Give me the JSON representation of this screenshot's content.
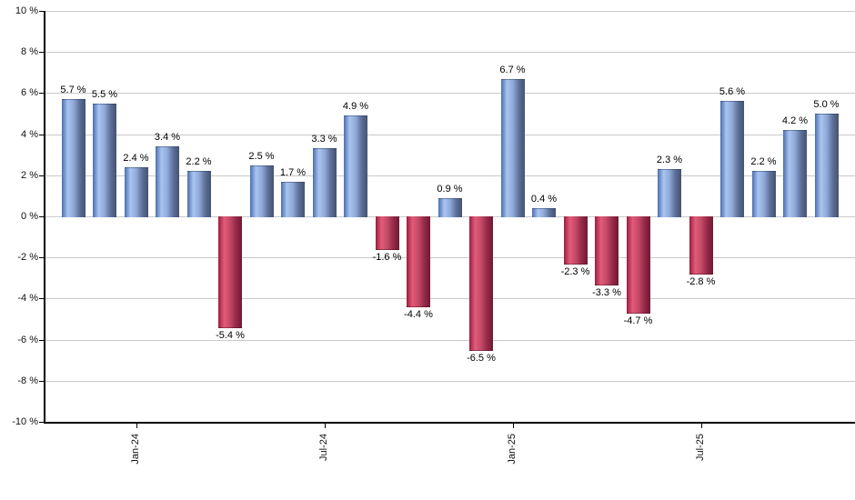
{
  "chart_data": {
    "type": "bar",
    "title": "",
    "values": [
      5.7,
      5.5,
      2.4,
      3.4,
      2.2,
      -5.4,
      2.5,
      1.7,
      3.3,
      4.9,
      -1.6,
      -4.4,
      0.9,
      -6.5,
      6.7,
      0.4,
      -2.3,
      -3.3,
      -4.7,
      2.3,
      -2.8,
      5.6,
      2.2,
      4.2,
      5.0
    ],
    "bar_value_labels": [
      "5.7 %",
      "5.5 %",
      "2.4 %",
      "3.4 %",
      "2.2 %",
      "-5.4 %",
      "2.5 %",
      "1.7 %",
      "3.3 %",
      "4.9 %",
      "-1.6 %",
      "-4.4 %",
      "0.9 %",
      "-6.5 %",
      "6.7 %",
      "0.4 %",
      "-2.3 %",
      "-3.3 %",
      "-4.7 %",
      "2.3 %",
      "-2.8 %",
      "5.6 %",
      "2.2 %",
      "4.2 %",
      "5.0 %"
    ],
    "x_axis": {
      "ticks": [
        {
          "label": "Jan-24",
          "bar_index": 2
        },
        {
          "label": "Jul-24",
          "bar_index": 8
        },
        {
          "label": "Jan-25",
          "bar_index": 14
        },
        {
          "label": "Jul-25",
          "bar_index": 20
        }
      ]
    },
    "y_axis": {
      "range": [
        -10,
        10
      ],
      "tick_values": [
        10,
        8,
        6,
        4,
        2,
        0,
        -2,
        -4,
        -6,
        -8,
        -10
      ],
      "tick_labels": [
        "10 %",
        "8 %",
        "6 %",
        "4 %",
        "2 %",
        "0 %",
        "-2 %",
        "-4 %",
        "-6 %",
        "-8 %",
        "-10 %"
      ]
    },
    "grid": "horizontal",
    "legend": null,
    "colors": {
      "positive_bar_gradient": [
        "#4a6fae",
        "#a9c4f0",
        "#8fa9d8",
        "#5d7099",
        "#44536f"
      ],
      "negative_bar_gradient": [
        "#9b1e3e",
        "#e35b79",
        "#c24a66",
        "#96294a",
        "#6e1b30"
      ],
      "gridline": "#c9c9c9",
      "axis": "#000000",
      "text": "#111111",
      "background": "#ffffff"
    }
  }
}
